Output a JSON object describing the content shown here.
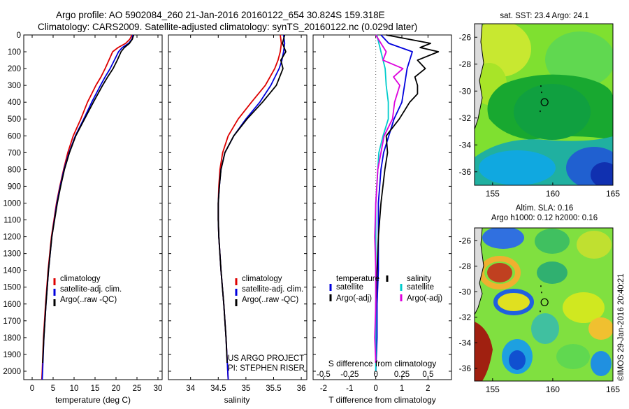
{
  "header": {
    "line1": "Argo profile: AO 5902084_260 21-Jan-2016 20160122_654 30.824S 159.318E",
    "line2": "Climatology: CARS2009. Satellite-adjusted climatology: synTS_20160122.nc (0.029d later)"
  },
  "colors": {
    "climatology": "#dd0000",
    "satellite": "#0000dd",
    "argo": "#000000",
    "salinity_satellite": "#00cccc",
    "salinity_argo": "#dd00dd"
  },
  "depth_axis": {
    "ylim": [
      0,
      2050
    ],
    "ticks": [
      0,
      100,
      200,
      300,
      400,
      500,
      600,
      700,
      800,
      900,
      1000,
      1100,
      1200,
      1300,
      1400,
      1500,
      1600,
      1700,
      1800,
      1900,
      2000
    ]
  },
  "chart_data": [
    {
      "id": "temperature",
      "type": "line",
      "xlabel": "temperature (deg C)",
      "xlim": [
        -2,
        31
      ],
      "xticks": [
        0,
        5,
        10,
        15,
        20,
        25,
        30
      ],
      "legend": {
        "placement": "lower-left",
        "entries": [
          "climatology",
          "satellite-adj. clim.",
          "Argo(..raw -QC)"
        ]
      },
      "series": [
        {
          "name": "climatology",
          "color": "#dd0000",
          "depth": [
            0,
            25,
            50,
            75,
            100,
            150,
            200,
            250,
            300,
            400,
            500,
            600,
            700,
            800,
            900,
            1000,
            1200,
            1400,
            1600,
            1800,
            2000,
            2050
          ],
          "values": [
            23.8,
            23.3,
            22.3,
            20.5,
            19.2,
            18.3,
            17.4,
            16.4,
            15.2,
            13.2,
            11.6,
            9.8,
            8.5,
            7.5,
            6.6,
            5.8,
            4.6,
            3.8,
            3.2,
            2.7,
            2.4,
            2.3
          ]
        },
        {
          "name": "satellite-adj. clim.",
          "color": "#0000dd",
          "depth": [
            0,
            25,
            50,
            75,
            100,
            150,
            200,
            250,
            300,
            400,
            500,
            600,
            700,
            800,
            900,
            1000,
            1200,
            1400,
            1600,
            1800,
            2000,
            2050
          ],
          "values": [
            24.0,
            23.8,
            23.0,
            21.5,
            20.6,
            19.6,
            18.6,
            17.4,
            16.3,
            14.2,
            12.3,
            10.3,
            8.8,
            7.6,
            6.7,
            5.9,
            4.7,
            3.9,
            3.3,
            2.8,
            2.5,
            2.4
          ]
        },
        {
          "name": "Argo(..raw -QC)",
          "color": "#000000",
          "depth": [
            0,
            25,
            50,
            75,
            100,
            150,
            200,
            250,
            300,
            400,
            500,
            600,
            700,
            800,
            900,
            1000,
            1200,
            1400,
            1600,
            1800,
            1950
          ],
          "values": [
            24.2,
            23.9,
            23.2,
            22.0,
            21.2,
            20.3,
            19.3,
            18.0,
            16.8,
            14.6,
            12.5,
            10.4,
            8.9,
            7.7,
            6.8,
            6.0,
            4.7,
            3.9,
            3.3,
            2.8,
            2.5
          ]
        }
      ]
    },
    {
      "id": "salinity",
      "type": "line",
      "xlabel": "salinity",
      "xlim": [
        33.6,
        36.1
      ],
      "xticks": [
        34,
        34.5,
        35,
        35.5,
        36
      ],
      "legend": {
        "placement": "lower-right",
        "entries": [
          "climatology",
          "satellite-adj. clim.",
          "Argo(..raw -QC)"
        ]
      },
      "annotations": [
        "US ARGO PROJECT",
        "PI: STEPHEN RISER"
      ],
      "series": [
        {
          "name": "climatology",
          "color": "#dd0000",
          "depth": [
            0,
            50,
            100,
            150,
            200,
            300,
            400,
            500,
            600,
            700,
            800,
            900,
            1000,
            1100,
            1200,
            1400,
            1600,
            1800,
            2050
          ],
          "values": [
            35.62,
            35.64,
            35.62,
            35.58,
            35.52,
            35.35,
            35.1,
            34.86,
            34.68,
            34.58,
            34.53,
            34.51,
            34.5,
            34.5,
            34.51,
            34.55,
            34.6,
            34.64,
            34.68
          ]
        },
        {
          "name": "satellite-adj. clim.",
          "color": "#0000dd",
          "depth": [
            0,
            50,
            100,
            150,
            200,
            300,
            400,
            500,
            600,
            700,
            800,
            900,
            1000,
            1100,
            1200,
            1400,
            1600,
            1800,
            2050
          ],
          "values": [
            35.68,
            35.7,
            35.68,
            35.65,
            35.6,
            35.45,
            35.25,
            35.0,
            34.78,
            34.62,
            34.55,
            34.52,
            34.5,
            34.5,
            34.51,
            34.55,
            34.6,
            34.64,
            34.68
          ]
        },
        {
          "name": "Argo(..raw -QC)",
          "color": "#000000",
          "depth": [
            0,
            50,
            100,
            150,
            200,
            300,
            400,
            500,
            600,
            700,
            800,
            900,
            1000,
            1100,
            1200,
            1400,
            1600,
            1800,
            1950
          ],
          "values": [
            35.7,
            35.66,
            35.72,
            35.63,
            35.67,
            35.55,
            35.3,
            35.02,
            34.78,
            34.62,
            34.55,
            34.52,
            34.5,
            34.5,
            34.51,
            34.55,
            34.6,
            34.64,
            34.66
          ]
        }
      ]
    },
    {
      "id": "differences",
      "type": "line",
      "xlabel": "T difference from climatology",
      "top_label": "S difference from climatology",
      "xlim": [
        -2.4,
        2.9
      ],
      "xticks": [
        -2,
        -1,
        0,
        1,
        2
      ],
      "top_ticks": [
        "-0.5",
        "-0.25",
        "0",
        "0.25",
        "0.5"
      ],
      "legend": {
        "placement": "lower-center",
        "headings": [
          "temperature",
          "salinity"
        ],
        "entries": [
          "satellite",
          "Argo(-adj)",
          "satellite",
          "Argo(-adj)"
        ]
      },
      "series": [
        {
          "name": "temperature satellite",
          "color": "#0000dd",
          "depth": [
            0,
            50,
            100,
            150,
            200,
            300,
            400,
            500,
            600,
            700,
            800,
            1000,
            1200,
            1400,
            1600,
            1800,
            2000
          ],
          "values": [
            0.2,
            0.5,
            1.4,
            1.3,
            1.2,
            1.1,
            1.0,
            0.7,
            0.5,
            0.3,
            0.2,
            0.1,
            0.1,
            0.1,
            0.05,
            0.05,
            0.0
          ]
        },
        {
          "name": "temperature Argo(-adj)",
          "color": "#000000",
          "depth": [
            0,
            50,
            75,
            100,
            150,
            200,
            250,
            300,
            350,
            400,
            450,
            500,
            600,
            700,
            800,
            1000,
            1200,
            1400,
            1600,
            1800,
            1950
          ],
          "values": [
            0.4,
            2.1,
            1.7,
            2.4,
            1.6,
            1.9,
            1.5,
            1.6,
            1.6,
            1.3,
            1.1,
            0.9,
            0.4,
            0.45,
            0.35,
            0.2,
            0.1,
            0.05,
            0.0,
            0.0,
            0.0
          ]
        },
        {
          "name": "salinity satellite",
          "color": "#00cccc",
          "depth": [
            0,
            100,
            200,
            300,
            400,
            500,
            600,
            700,
            800,
            900,
            1000,
            1200,
            1400,
            1600,
            1800,
            2000
          ],
          "values": [
            0.01,
            0.05,
            0.09,
            0.1,
            0.12,
            0.12,
            0.07,
            0.03,
            0.02,
            0.01,
            0.0,
            0.0,
            0.0,
            0.0,
            0.0,
            0.0
          ]
        },
        {
          "name": "salinity Argo(-adj)",
          "color": "#dd00dd",
          "depth": [
            0,
            50,
            100,
            150,
            200,
            250,
            300,
            400,
            500,
            600,
            700,
            800,
            900,
            1000,
            1200,
            1400,
            1600,
            1800,
            1950
          ],
          "values": [
            0.0,
            0.05,
            0.1,
            0.07,
            0.26,
            0.17,
            0.23,
            0.18,
            0.16,
            0.08,
            0.05,
            0.02,
            0.01,
            0.0,
            -0.01,
            0.0,
            0.0,
            -0.01,
            0.0
          ]
        }
      ]
    },
    {
      "id": "sst_map",
      "type": "heatmap",
      "title": "sat. SST: 23.4  Argo: 24.1",
      "xlim": [
        153.5,
        165
      ],
      "ylim": [
        -37,
        -25
      ],
      "xticks": [
        155,
        160,
        165
      ],
      "yticks": [
        -26,
        -28,
        -30,
        -32,
        -34,
        -36
      ],
      "marker": {
        "lon": 159.318,
        "lat": -30.824
      }
    },
    {
      "id": "sla_map",
      "type": "heatmap",
      "title_lines": [
        "Altim. SLA: 0.16",
        "Argo h1000: 0.12  h2000: 0.16"
      ],
      "xlim": [
        153.5,
        165
      ],
      "ylim": [
        -37,
        -25
      ],
      "xticks": [
        155,
        160,
        165
      ],
      "yticks": [
        -26,
        -28,
        -30,
        -32,
        -34,
        -36
      ],
      "marker": {
        "lon": 159.318,
        "lat": -30.824
      }
    }
  ],
  "footer": {
    "credit": "©IMOS 29-Jan-2016 20:40:21"
  }
}
